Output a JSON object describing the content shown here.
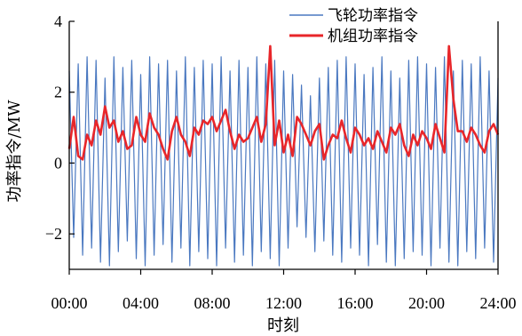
{
  "colors": {
    "flywheel": "#4a78c0",
    "unit": "#e8262a",
    "axis": "#000000"
  },
  "chart_data": {
    "type": "line",
    "title": "",
    "xlabel": "时刻",
    "ylabel": "功率指令/MW",
    "xlim": [
      0,
      24
    ],
    "ylim": [
      -3,
      4
    ],
    "x_ticks": [
      0,
      4,
      8,
      12,
      16,
      20,
      24
    ],
    "x_tick_labels": [
      "00:00",
      "04:00",
      "08:00",
      "12:00",
      "16:00",
      "20:00",
      "24:00"
    ],
    "y_ticks": [
      -2,
      0,
      2,
      4
    ],
    "y_tick_labels": [
      "−2",
      "0",
      "2",
      "4"
    ],
    "grid": false,
    "legend_position": "top-right",
    "series": [
      {
        "name": "飞轮功率指令",
        "color": "#4a78c0",
        "x": [
          0,
          0.25,
          0.5,
          0.75,
          1,
          1.25,
          1.5,
          1.75,
          2,
          2.25,
          2.5,
          2.75,
          3,
          3.25,
          3.5,
          3.75,
          4,
          4.25,
          4.5,
          4.75,
          5,
          5.25,
          5.5,
          5.75,
          6,
          6.25,
          6.5,
          6.75,
          7,
          7.25,
          7.5,
          7.75,
          8,
          8.25,
          8.5,
          8.75,
          9,
          9.25,
          9.5,
          9.75,
          10,
          10.25,
          10.5,
          10.75,
          11,
          11.25,
          11.5,
          11.75,
          12,
          12.25,
          12.5,
          12.75,
          13,
          13.25,
          13.5,
          13.75,
          14,
          14.25,
          14.5,
          14.75,
          15,
          15.25,
          15.5,
          15.75,
          16,
          16.25,
          16.5,
          16.75,
          17,
          17.25,
          17.5,
          17.75,
          18,
          18.25,
          18.5,
          18.75,
          19,
          19.25,
          19.5,
          19.75,
          20,
          20.25,
          20.5,
          20.75,
          21,
          21.25,
          21.5,
          21.75,
          22,
          22.25,
          22.5,
          22.75,
          23,
          23.25,
          23.5,
          23.75,
          24
        ],
        "values": [
          2.6,
          -2.1,
          2.8,
          -2.6,
          3,
          -2.4,
          2.9,
          -2.8,
          2.4,
          -2.9,
          3,
          -2.5,
          2.7,
          -2.2,
          2.9,
          -2.7,
          2.5,
          -2.9,
          3,
          -2.6,
          2.8,
          -2.3,
          2.9,
          -2.8,
          2.6,
          -2.4,
          3,
          -2.9,
          2.7,
          -2.5,
          2.9,
          -2.7,
          2.8,
          -2.9,
          3,
          -2.4,
          2.6,
          -2.8,
          2.9,
          -2.6,
          2.7,
          -2.9,
          3,
          -2.5,
          2.8,
          -2.7,
          2.9,
          -2.9,
          2.6,
          -2.4,
          2.5,
          -1.8,
          2.2,
          -2.1,
          1.9,
          -2.5,
          2.4,
          -2.2,
          2.7,
          -2.6,
          2.9,
          -2.8,
          3,
          -2.4,
          2.8,
          -2.6,
          2.5,
          -2.9,
          2.7,
          -2.3,
          3,
          -2.8,
          2.6,
          -2.9,
          2.4,
          -2.7,
          2.9,
          -2.5,
          3,
          -2.6,
          2.8,
          -2.9,
          2.7,
          -2.4,
          3,
          -2.8,
          2.6,
          -2.9,
          2.9,
          -2.5,
          2.8,
          -2.7,
          3,
          -2.4,
          2.6,
          -2.8,
          2.4
        ]
      },
      {
        "name": "机组功率指令",
        "color": "#e8262a",
        "x": [
          0,
          0.25,
          0.5,
          0.75,
          1,
          1.25,
          1.5,
          1.75,
          2,
          2.25,
          2.5,
          2.75,
          3,
          3.25,
          3.5,
          3.75,
          4,
          4.25,
          4.5,
          4.75,
          5,
          5.25,
          5.5,
          5.75,
          6,
          6.25,
          6.5,
          6.75,
          7,
          7.25,
          7.5,
          7.75,
          8,
          8.25,
          8.5,
          8.75,
          9,
          9.25,
          9.5,
          9.75,
          10,
          10.25,
          10.5,
          10.75,
          11,
          11.25,
          11.5,
          11.75,
          12,
          12.25,
          12.5,
          12.75,
          13,
          13.25,
          13.5,
          13.75,
          14,
          14.25,
          14.5,
          14.75,
          15,
          15.25,
          15.5,
          15.75,
          16,
          16.25,
          16.5,
          16.75,
          17,
          17.25,
          17.5,
          17.75,
          18,
          18.25,
          18.5,
          18.75,
          19,
          19.25,
          19.5,
          19.75,
          20,
          20.25,
          20.5,
          20.75,
          21,
          21.25,
          21.5,
          21.75,
          22,
          22.25,
          22.5,
          22.75,
          23,
          23.25,
          23.5,
          23.75,
          24
        ],
        "values": [
          0.4,
          1.3,
          0.2,
          0.1,
          0.8,
          0.5,
          1.2,
          0.8,
          1.6,
          1.0,
          1.2,
          0.6,
          0.9,
          0.4,
          0.5,
          1.3,
          0.8,
          0.6,
          1.4,
          1.0,
          0.8,
          0.4,
          0.1,
          0.9,
          1.3,
          0.8,
          0.6,
          0.2,
          1.0,
          0.8,
          1.2,
          1.1,
          1.3,
          0.9,
          1.2,
          1.5,
          0.9,
          0.4,
          0.8,
          0.6,
          0.7,
          1.0,
          1.3,
          0.6,
          1.1,
          3.3,
          0.5,
          1.2,
          0.3,
          0.8,
          0.2,
          1.3,
          1.1,
          0.8,
          0.5,
          0.9,
          1.1,
          0.1,
          0.5,
          0.8,
          0.7,
          1.2,
          0.7,
          0.3,
          1.0,
          0.8,
          0.5,
          0.7,
          0.4,
          0.9,
          0.6,
          0.3,
          1.0,
          0.8,
          1.1,
          0.5,
          0.2,
          0.8,
          0.5,
          0.9,
          0.7,
          0.4,
          1.1,
          0.7,
          0.3,
          3.3,
          1.8,
          0.9,
          0.9,
          0.6,
          1.0,
          0.8,
          0.5,
          0.3,
          0.9,
          1.1,
          0.8
        ]
      }
    ]
  }
}
